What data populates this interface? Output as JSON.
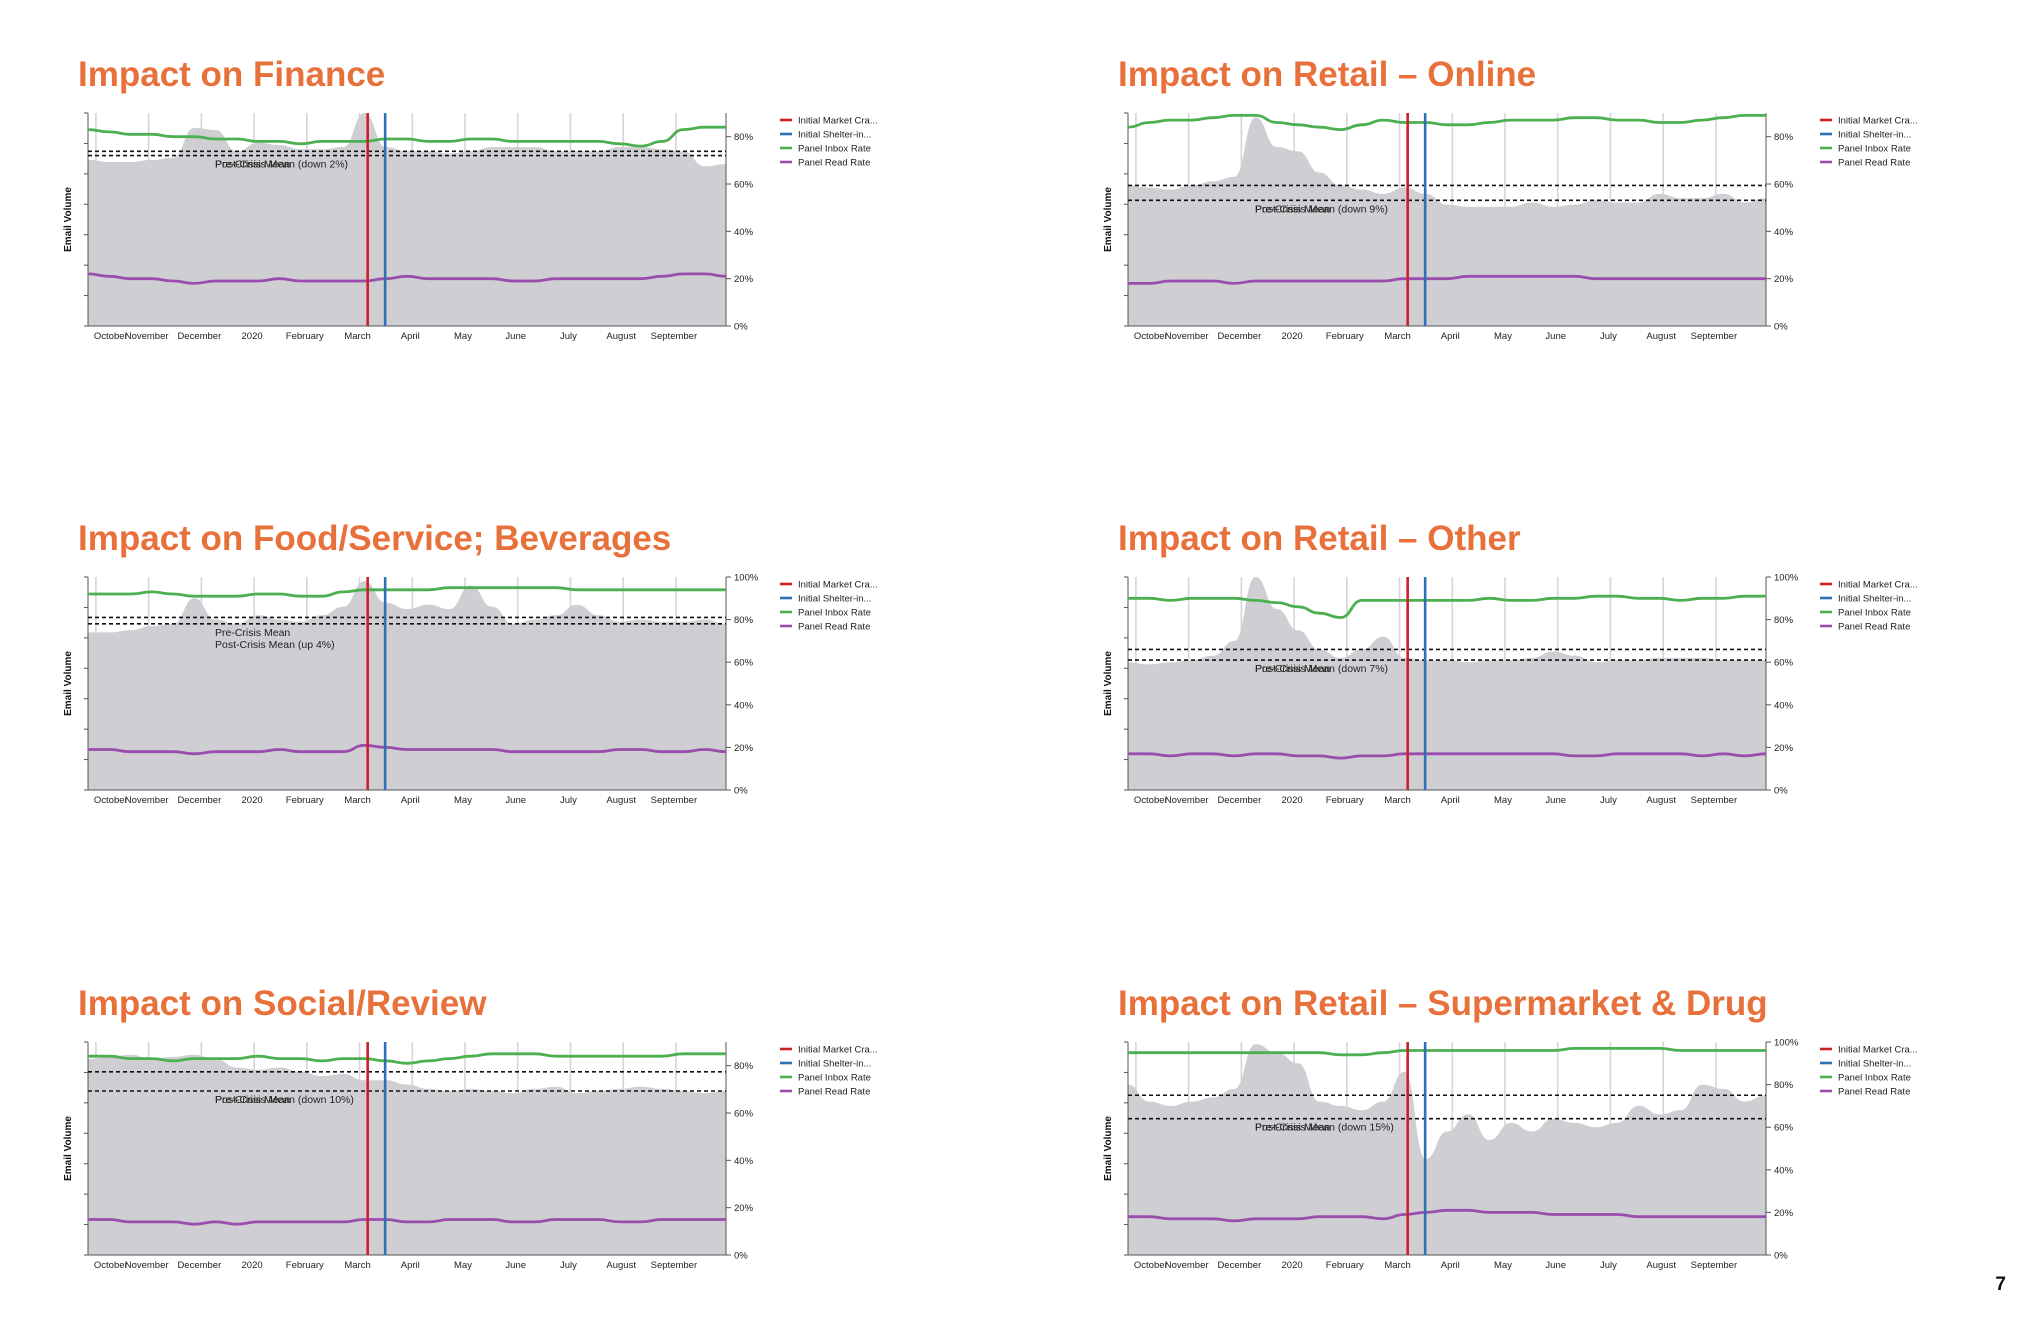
{
  "page": {
    "number": "7"
  },
  "legend": {
    "items": [
      {
        "label": "Initial Market Cra...",
        "color": "#cc2027"
      },
      {
        "label": "Initial Shelter-in...",
        "color": "#2f6fb4"
      },
      {
        "label": "Panel Inbox Rate",
        "color": "#4caf50"
      },
      {
        "label": "Panel Read Rate",
        "color": "#9b4dae"
      }
    ]
  },
  "chart_data": [
    {
      "type": "area",
      "title": "Impact on Finance",
      "ylabel": "Email Volume",
      "x_ticks": [
        "October",
        "November",
        "December",
        "2020",
        "February",
        "March",
        "April",
        "May",
        "June",
        "July",
        "August",
        "September"
      ],
      "y2_ticks": [
        "80%",
        "60%",
        "40%",
        "20%",
        "0%"
      ],
      "y2_range": [
        0,
        90
      ],
      "markers": [
        {
          "name": "Initial Market Cra...",
          "x": "2020-03-09"
        },
        {
          "name": "Initial Shelter-in...",
          "x": "2020-03-19"
        }
      ],
      "pre_mean": {
        "label": "Pre-Crisis Mean",
        "value": 0.82
      },
      "post_mean": {
        "label": "Post-Crisis Mean (down 2%)",
        "value": 0.8
      },
      "volume": [
        0.78,
        0.77,
        0.77,
        0.78,
        0.79,
        0.93,
        0.92,
        0.82,
        0.86,
        0.85,
        0.83,
        0.83,
        0.84,
        1.0,
        0.84,
        0.82,
        0.82,
        0.81,
        0.82,
        0.84,
        0.84,
        0.84,
        0.82,
        0.82,
        0.82,
        0.84,
        0.84,
        0.83,
        0.82,
        0.75,
        0.76
      ],
      "series": [
        {
          "name": "Panel Inbox Rate",
          "values": [
            83,
            82,
            81,
            81,
            80,
            80,
            79,
            79,
            78,
            78,
            77,
            78,
            78,
            78,
            79,
            79,
            78,
            78,
            79,
            79,
            78,
            78,
            78,
            78,
            78,
            77,
            76,
            78,
            83,
            84,
            84
          ]
        },
        {
          "name": "Panel Read Rate",
          "values": [
            22,
            21,
            20,
            20,
            19,
            18,
            19,
            19,
            19,
            20,
            19,
            19,
            19,
            19,
            20,
            21,
            20,
            20,
            20,
            20,
            19,
            19,
            20,
            20,
            20,
            20,
            20,
            21,
            22,
            22,
            21
          ]
        }
      ]
    },
    {
      "type": "area",
      "title": "Impact on Retail – Online",
      "ylabel": "Email Volume",
      "x_ticks": [
        "October",
        "November",
        "December",
        "2020",
        "February",
        "March",
        "April",
        "May",
        "June",
        "July",
        "August",
        "September"
      ],
      "y2_ticks": [
        "80%",
        "60%",
        "40%",
        "20%",
        "0%"
      ],
      "y2_range": [
        0,
        90
      ],
      "markers": [
        {
          "name": "Initial Market Cra...",
          "x": "2020-03-09"
        },
        {
          "name": "Initial Shelter-in...",
          "x": "2020-03-19"
        }
      ],
      "pre_mean": {
        "label": "Pre-Crisis Mean",
        "value": 0.66
      },
      "post_mean": {
        "label": "Post-Crisis Mean (down 9%)",
        "value": 0.59
      },
      "volume": [
        0.66,
        0.65,
        0.64,
        0.66,
        0.68,
        0.7,
        0.98,
        0.84,
        0.82,
        0.72,
        0.66,
        0.64,
        0.62,
        0.65,
        0.62,
        0.57,
        0.56,
        0.56,
        0.56,
        0.58,
        0.56,
        0.57,
        0.59,
        0.58,
        0.58,
        0.62,
        0.6,
        0.6,
        0.62,
        0.58,
        0.6
      ],
      "series": [
        {
          "name": "Panel Inbox Rate",
          "values": [
            84,
            86,
            87,
            87,
            88,
            89,
            89,
            86,
            85,
            84,
            83,
            85,
            87,
            86,
            86,
            85,
            85,
            86,
            87,
            87,
            87,
            88,
            88,
            87,
            87,
            86,
            86,
            87,
            88,
            89,
            89
          ]
        },
        {
          "name": "Panel Read Rate",
          "values": [
            18,
            18,
            19,
            19,
            19,
            18,
            19,
            19,
            19,
            19,
            19,
            19,
            19,
            20,
            20,
            20,
            21,
            21,
            21,
            21,
            21,
            21,
            20,
            20,
            20,
            20,
            20,
            20,
            20,
            20,
            20
          ]
        }
      ]
    },
    {
      "type": "area",
      "title": "Impact on Food/Service; Beverages",
      "ylabel": "Email Volume",
      "x_ticks": [
        "October",
        "November",
        "December",
        "2020",
        "February",
        "March",
        "April",
        "May",
        "June",
        "July",
        "August",
        "September"
      ],
      "y2_ticks": [
        "100%",
        "80%",
        "60%",
        "40%",
        "20%",
        "0%"
      ],
      "y2_range": [
        0,
        100
      ],
      "markers": [
        {
          "name": "Initial Market Cra...",
          "x": "2020-03-09"
        },
        {
          "name": "Initial Shelter-in...",
          "x": "2020-03-19"
        }
      ],
      "pre_mean": {
        "label": "Pre-Crisis Mean",
        "value": 0.78
      },
      "post_mean": {
        "label": "Post-Crisis Mean (up 4%)",
        "value": 0.81
      },
      "volume": [
        0.74,
        0.74,
        0.75,
        0.77,
        0.78,
        0.9,
        0.8,
        0.78,
        0.82,
        0.8,
        0.79,
        0.82,
        0.86,
        0.98,
        0.88,
        0.85,
        0.87,
        0.85,
        0.96,
        0.86,
        0.78,
        0.8,
        0.82,
        0.87,
        0.82,
        0.79,
        0.8,
        0.79,
        0.79,
        0.8,
        0.78
      ],
      "series": [
        {
          "name": "Panel Inbox Rate",
          "values": [
            92,
            92,
            92,
            93,
            92,
            91,
            91,
            91,
            92,
            92,
            91,
            91,
            93,
            94,
            94,
            94,
            94,
            95,
            95,
            95,
            95,
            95,
            95,
            94,
            94,
            94,
            94,
            94,
            94,
            94,
            94
          ]
        },
        {
          "name": "Panel Read Rate",
          "values": [
            19,
            19,
            18,
            18,
            18,
            17,
            18,
            18,
            18,
            19,
            18,
            18,
            18,
            21,
            20,
            19,
            19,
            19,
            19,
            19,
            18,
            18,
            18,
            18,
            18,
            19,
            19,
            18,
            18,
            19,
            18
          ]
        }
      ]
    },
    {
      "type": "area",
      "title": "Impact on Retail – Other",
      "ylabel": "Email Volume",
      "x_ticks": [
        "October",
        "November",
        "December",
        "2020",
        "February",
        "March",
        "April",
        "May",
        "June",
        "July",
        "August",
        "September"
      ],
      "y2_ticks": [
        "100%",
        "80%",
        "60%",
        "40%",
        "20%",
        "0%"
      ],
      "y2_range": [
        0,
        100
      ],
      "markers": [
        {
          "name": "Initial Market Cra...",
          "x": "2020-03-09"
        },
        {
          "name": "Initial Shelter-in...",
          "x": "2020-03-19"
        }
      ],
      "pre_mean": {
        "label": "Pre-Crisis Mean",
        "value": 0.66
      },
      "post_mean": {
        "label": "Post-Crisis Mean (down 7%)",
        "value": 0.61
      },
      "volume": [
        0.6,
        0.59,
        0.6,
        0.61,
        0.63,
        0.7,
        1.0,
        0.85,
        0.75,
        0.66,
        0.62,
        0.66,
        0.72,
        0.62,
        0.61,
        0.61,
        0.6,
        0.61,
        0.61,
        0.62,
        0.65,
        0.63,
        0.6,
        0.61,
        0.61,
        0.62,
        0.62,
        0.62,
        0.61,
        0.61,
        0.61
      ],
      "series": [
        {
          "name": "Panel Inbox Rate",
          "values": [
            90,
            90,
            89,
            90,
            90,
            90,
            89,
            88,
            86,
            83,
            81,
            89,
            89,
            89,
            89,
            89,
            89,
            90,
            89,
            89,
            90,
            90,
            91,
            91,
            90,
            90,
            89,
            90,
            90,
            91,
            91
          ]
        },
        {
          "name": "Panel Read Rate",
          "values": [
            17,
            17,
            16,
            17,
            17,
            16,
            17,
            17,
            16,
            16,
            15,
            16,
            16,
            17,
            17,
            17,
            17,
            17,
            17,
            17,
            17,
            16,
            16,
            17,
            17,
            17,
            17,
            16,
            17,
            16,
            17
          ]
        }
      ]
    },
    {
      "type": "area",
      "title": "Impact on Social/Review",
      "ylabel": "Email Volume",
      "x_ticks": [
        "October",
        "November",
        "December",
        "2020",
        "February",
        "March",
        "April",
        "May",
        "June",
        "July",
        "August",
        "September"
      ],
      "y2_ticks": [
        "80%",
        "60%",
        "40%",
        "20%",
        "0%"
      ],
      "y2_range": [
        0,
        90
      ],
      "markers": [
        {
          "name": "Initial Market Cra...",
          "x": "2020-03-09"
        },
        {
          "name": "Initial Shelter-in...",
          "x": "2020-03-19"
        }
      ],
      "pre_mean": {
        "label": "Pre-Crisis Mean",
        "value": 0.86
      },
      "post_mean": {
        "label": "Post-Crisis Mean (down 10%)",
        "value": 0.77
      },
      "volume": [
        0.92,
        0.93,
        0.94,
        0.92,
        0.93,
        0.94,
        0.92,
        0.88,
        0.87,
        0.88,
        0.86,
        0.84,
        0.85,
        0.82,
        0.82,
        0.8,
        0.78,
        0.77,
        0.78,
        0.77,
        0.76,
        0.78,
        0.79,
        0.76,
        0.77,
        0.78,
        0.79,
        0.78,
        0.77,
        0.76,
        0.77
      ],
      "series": [
        {
          "name": "Panel Inbox Rate",
          "values": [
            84,
            84,
            83,
            83,
            82,
            83,
            83,
            83,
            84,
            83,
            83,
            82,
            83,
            83,
            82,
            81,
            82,
            83,
            84,
            85,
            85,
            85,
            84,
            84,
            84,
            84,
            84,
            84,
            85,
            85,
            85
          ]
        },
        {
          "name": "Panel Read Rate",
          "values": [
            15,
            15,
            14,
            14,
            14,
            13,
            14,
            13,
            14,
            14,
            14,
            14,
            14,
            15,
            15,
            14,
            14,
            15,
            15,
            15,
            14,
            14,
            15,
            15,
            15,
            14,
            14,
            15,
            15,
            15,
            15
          ]
        }
      ]
    },
    {
      "type": "area",
      "title": "Impact on Retail – Supermarket & Drug",
      "ylabel": "Email Volume",
      "x_ticks": [
        "October",
        "November",
        "December",
        "2020",
        "February",
        "March",
        "April",
        "May",
        "June",
        "July",
        "August",
        "September"
      ],
      "y2_ticks": [
        "100%",
        "80%",
        "60%",
        "40%",
        "20%",
        "0%"
      ],
      "y2_range": [
        0,
        100
      ],
      "markers": [
        {
          "name": "Initial Market Cra...",
          "x": "2020-03-09"
        },
        {
          "name": "Initial Shelter-in...",
          "x": "2020-03-19"
        }
      ],
      "pre_mean": {
        "label": "Pre-Crisis Mean",
        "value": 0.75
      },
      "post_mean": {
        "label": "Post-Crisis Mean (down 15%)",
        "value": 0.64
      },
      "volume": [
        0.8,
        0.72,
        0.7,
        0.72,
        0.74,
        0.78,
        0.99,
        0.95,
        0.9,
        0.72,
        0.7,
        0.68,
        0.72,
        0.86,
        0.45,
        0.58,
        0.66,
        0.54,
        0.62,
        0.58,
        0.64,
        0.62,
        0.6,
        0.62,
        0.7,
        0.66,
        0.68,
        0.8,
        0.78,
        0.72,
        0.75
      ],
      "series": [
        {
          "name": "Panel Inbox Rate",
          "values": [
            95,
            95,
            95,
            95,
            95,
            95,
            95,
            95,
            95,
            95,
            94,
            94,
            95,
            96,
            96,
            96,
            96,
            96,
            96,
            96,
            96,
            97,
            97,
            97,
            97,
            97,
            96,
            96,
            96,
            96,
            96
          ]
        },
        {
          "name": "Panel Read Rate",
          "values": [
            18,
            18,
            17,
            17,
            17,
            16,
            17,
            17,
            17,
            18,
            18,
            18,
            17,
            19,
            20,
            21,
            21,
            20,
            20,
            20,
            19,
            19,
            19,
            19,
            18,
            18,
            18,
            18,
            18,
            18,
            18
          ]
        }
      ]
    }
  ]
}
